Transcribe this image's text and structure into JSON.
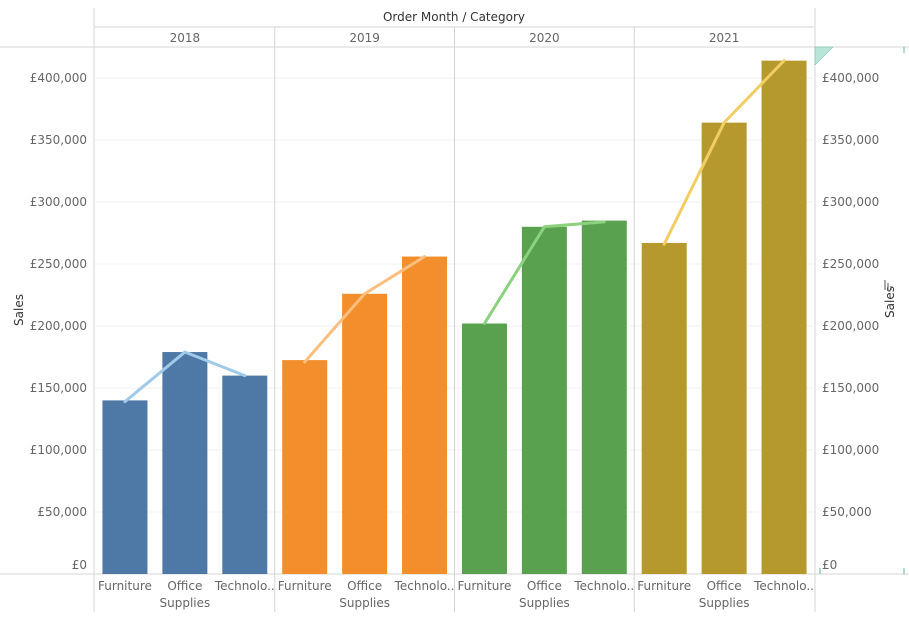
{
  "chart_data": {
    "type": "bar",
    "title": "Order Month / Category",
    "ylabel": "Sales",
    "ylabel_right": "Sales",
    "ylim": [
      0,
      425000
    ],
    "yticks": [
      0,
      50000,
      100000,
      150000,
      200000,
      250000,
      300000,
      350000,
      400000
    ],
    "ytick_labels": [
      "£0",
      "£50,000",
      "£100,000",
      "£150,000",
      "£200,000",
      "£250,000",
      "£300,000",
      "£350,000",
      "£400,000"
    ],
    "categories": [
      {
        "line1": "Furniture",
        "line2": ""
      },
      {
        "line1": "Office",
        "line2": "Supplies"
      },
      {
        "line1": "Technolo..",
        "line2": ""
      }
    ],
    "groups": [
      {
        "label": "2018",
        "color": "#4e79a7",
        "line_color": "#a0cbe8",
        "bar_values": [
          140000,
          179000,
          160000
        ],
        "line_values": [
          139000,
          179000,
          160000
        ]
      },
      {
        "label": "2019",
        "color": "#f28e2b",
        "line_color": "#ffbe7d",
        "bar_values": [
          172500,
          226000,
          256000
        ],
        "line_values": [
          171000,
          226000,
          256000
        ]
      },
      {
        "label": "2020",
        "color": "#59a14f",
        "line_color": "#8cd17d",
        "bar_values": [
          202000,
          280000,
          285000
        ],
        "line_values": [
          202000,
          280000,
          284000
        ]
      },
      {
        "label": "2021",
        "color": "#b6992d",
        "line_color": "#f1ce63",
        "bar_values": [
          267000,
          364000,
          414000
        ],
        "line_values": [
          266000,
          364000,
          414000
        ]
      }
    ],
    "grid": true,
    "legend": "none"
  }
}
